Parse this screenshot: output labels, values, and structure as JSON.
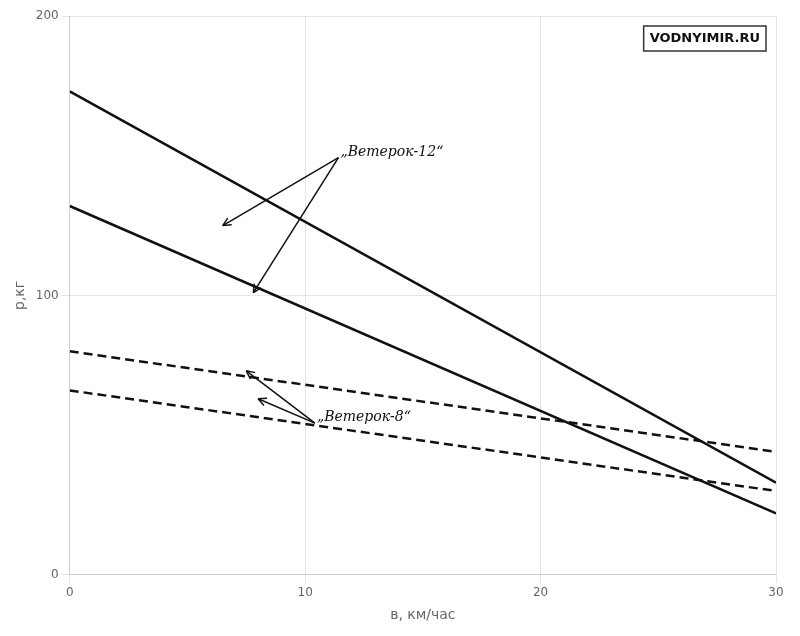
{
  "chart_data": {
    "type": "line",
    "xlabel": "в, км/час",
    "ylabel": "р,кг",
    "x": [
      0,
      30
    ],
    "series": [
      {
        "values": [
          173,
          33
        ],
        "line_style": "solid"
      },
      {
        "values": [
          132,
          22
        ],
        "line_style": "solid"
      },
      {
        "values": [
          80,
          44
        ],
        "line_style": "dashed"
      },
      {
        "values": [
          66,
          30
        ],
        "line_style": "dashed"
      }
    ],
    "color": "#111111",
    "xlim": [
      0,
      30
    ],
    "ylim": [
      0,
      200
    ],
    "xticks": [
      0,
      10,
      20,
      30
    ],
    "yticks": [
      0,
      100,
      200
    ],
    "grid": true,
    "annotations": [
      {
        "text": "„Ветерок-12“",
        "x": 11.5,
        "y": 150,
        "arrows": [
          [
            6.5,
            125
          ],
          [
            7.8,
            101
          ]
        ]
      },
      {
        "text": "„Ветерок-8“",
        "x": 10.5,
        "y": 55,
        "arrows": [
          [
            7.5,
            73
          ],
          [
            8.0,
            63
          ]
        ]
      },
      {
        "text": "VODNYIMIR.RU"
      }
    ]
  }
}
